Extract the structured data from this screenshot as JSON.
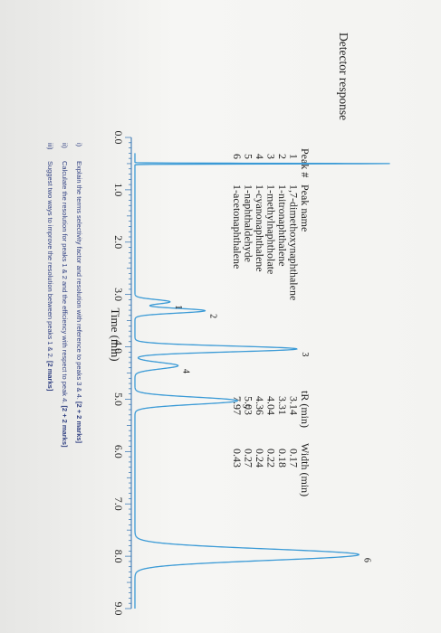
{
  "chart_data": {
    "type": "line",
    "ylabel": "Detector response",
    "xlabel": "Time (min)",
    "xlim": [
      0,
      9
    ],
    "x_ticks": [
      "0.0",
      "1.0",
      "2.0",
      "3.0",
      "4.0",
      "5.0",
      "6.0",
      "7.0",
      "8.0",
      "9.0"
    ],
    "series_color": "#3a9ad6",
    "peaks": [
      {
        "label": "1",
        "tr": 3.14,
        "width": 0.17,
        "height": 0.13
      },
      {
        "label": "2",
        "tr": 3.31,
        "width": 0.18,
        "height": 0.26
      },
      {
        "label": "3",
        "tr": 4.04,
        "width": 0.22,
        "height": 0.6
      },
      {
        "label": "4",
        "tr": 4.36,
        "width": 0.24,
        "height": 0.16
      },
      {
        "label": "5",
        "tr": 5.03,
        "width": 0.27,
        "height": 0.38
      },
      {
        "label": "6",
        "tr": 7.97,
        "width": 0.43,
        "height": 0.83
      }
    ],
    "injection_spike": {
      "t": 0.5,
      "height": 0.95
    },
    "table": {
      "headers": [
        "Peak #",
        "Peak name",
        "tR (min)",
        "Width (min)"
      ],
      "rows": [
        [
          "1",
          "1,7-dimethoxynaphthalene",
          "3.14",
          "0.17"
        ],
        [
          "2",
          "1-nitronaphthalene",
          "3.31",
          "0.18"
        ],
        [
          "3",
          "1-methylnaphtholate",
          "4.04",
          "0.22"
        ],
        [
          "4",
          "1-cyanonaphthalene",
          "4.36",
          "0.24"
        ],
        [
          "5",
          "1-naphthaldehyde",
          "5.03",
          "0.27"
        ],
        [
          "6",
          "1-acetonaphthalene",
          "7.97",
          "0.43"
        ]
      ]
    }
  },
  "questions": [
    {
      "num": "i)",
      "text": "Explain the terms selectivity factor and resolution with reference to peaks 3 & 4.",
      "marks": "[2 + 2 marks]"
    },
    {
      "num": "ii)",
      "text": "Calculate the resolution for peaks 1 & 2 and the efficiency with respect to peak 4.",
      "marks": "[2 + 2 marks]"
    },
    {
      "num": "iii)",
      "text": "Suggest two ways to improve the resolution between peaks 1 & 2.",
      "marks": "[2 marks]"
    }
  ]
}
